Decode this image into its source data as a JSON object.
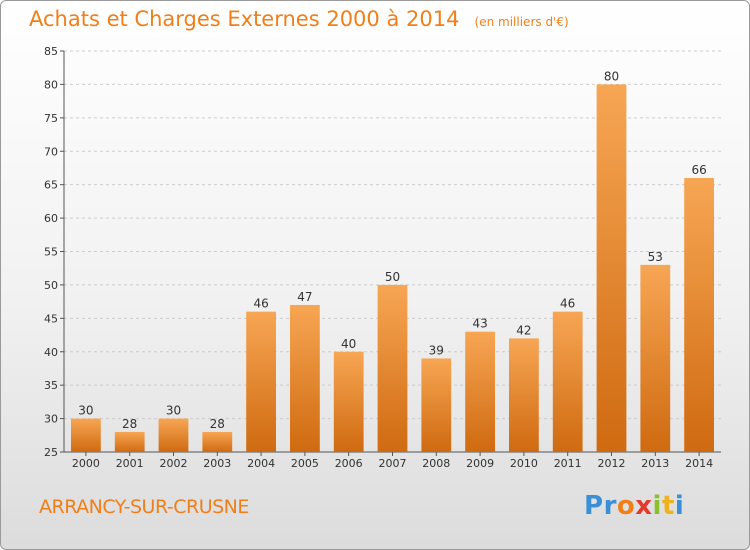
{
  "header": {
    "title": "Achats et Charges Externes 2000 à 2014",
    "unit": "(en milliers d'€)"
  },
  "footer": {
    "city": "ARRANCY-SUR-CRUSNE",
    "logo_letters": [
      "P",
      "r",
      "o",
      "x",
      "i",
      "t",
      "i"
    ],
    "logo_colors": [
      "#3a8fd6",
      "#3a8fd6",
      "#f07f19",
      "#e23b2e",
      "#8cbf2f",
      "#f0b21a",
      "#3a8fd6"
    ]
  },
  "colors": {
    "bar": "#f08a26",
    "bar_light": "#f7a654",
    "bar_dark": "#cf6a10",
    "grid": "#cccccc",
    "axis": "#555555"
  },
  "chart_data": {
    "type": "bar",
    "title": "Achats et Charges Externes 2000 à 2014",
    "subtitle": "(en milliers d'€)",
    "categories": [
      "2000",
      "2001",
      "2002",
      "2003",
      "2004",
      "2005",
      "2006",
      "2007",
      "2008",
      "2009",
      "2010",
      "2011",
      "2012",
      "2013",
      "2014"
    ],
    "values": [
      30,
      28,
      30,
      28,
      46,
      47,
      40,
      50,
      39,
      43,
      42,
      46,
      80,
      53,
      66
    ],
    "ylim": [
      25,
      85
    ],
    "yticks": [
      25,
      30,
      35,
      40,
      45,
      50,
      55,
      60,
      65,
      70,
      75,
      80,
      85
    ],
    "grid": true
  }
}
